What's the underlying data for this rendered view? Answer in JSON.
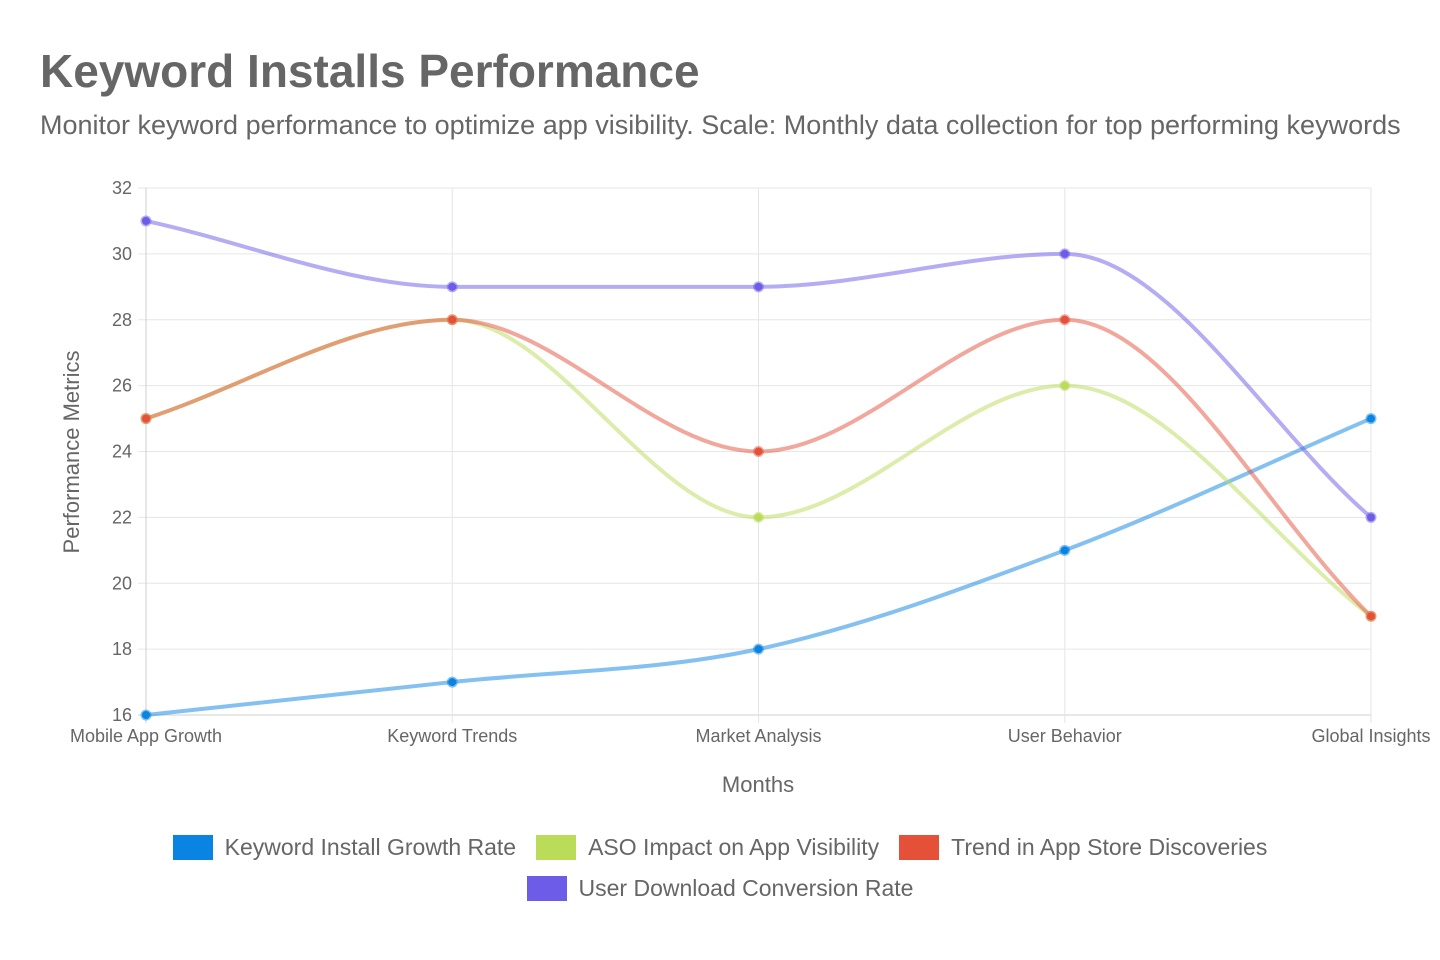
{
  "header": {
    "title": "Keyword Installs Performance",
    "subtitle": "Monitor keyword performance to optimize app visibility. Scale: Monthly data collection for top performing keywords"
  },
  "chart_data": {
    "type": "line",
    "title": "Keyword Installs Performance",
    "subtitle": "Monitor keyword performance to optimize app visibility. Scale: Monthly data collection for top performing keywords",
    "xlabel": "Months",
    "ylabel": "Performance Metrics",
    "categories": [
      "Mobile App Growth",
      "Keyword Trends",
      "Market Analysis",
      "User Behavior",
      "Global Insights"
    ],
    "ylim": [
      16,
      32
    ],
    "yticks": [
      16,
      18,
      20,
      22,
      24,
      26,
      28,
      30,
      32
    ],
    "grid": true,
    "legend_position": "bottom",
    "series": [
      {
        "name": "Keyword Install Growth Rate",
        "values": [
          16,
          17,
          18,
          21,
          25
        ],
        "color": "#0984e3"
      },
      {
        "name": "ASO Impact on App Visibility",
        "values": [
          25,
          28,
          22,
          26,
          19
        ],
        "color": "#badc58"
      },
      {
        "name": "Trend in App Store Discoveries",
        "values": [
          25,
          28,
          24,
          28,
          19
        ],
        "color": "#e55039"
      },
      {
        "name": "User Download Conversion Rate",
        "values": [
          31,
          29,
          29,
          30,
          22
        ],
        "color": "#6c5ce7"
      }
    ]
  }
}
